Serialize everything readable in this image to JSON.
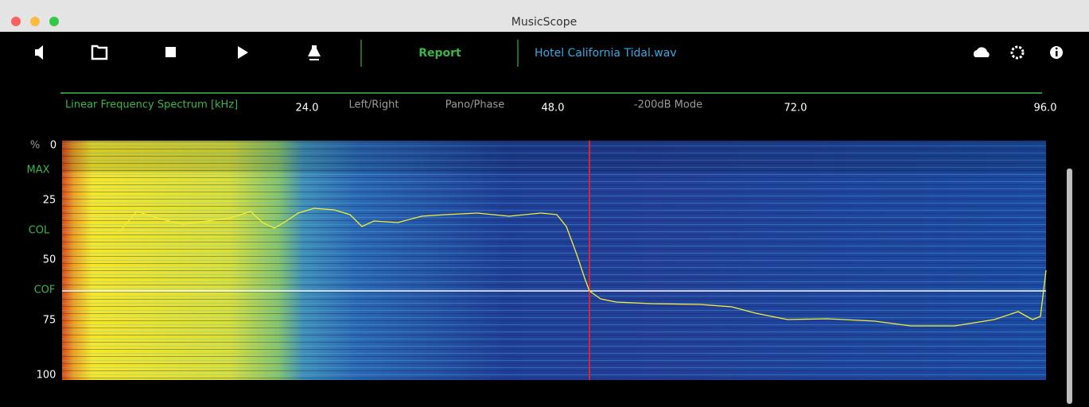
{
  "header": {
    "title": "MusicScope"
  },
  "toolbar": {
    "report": "Report",
    "file": "Hotel California Tidal.wav"
  },
  "spectrum": {
    "title": "Linear Frequency Spectrum [kHz]",
    "labels": [
      "24.0",
      "Left/Right",
      "Pano/Phase",
      "48.0",
      "-200dB Mode",
      "72.0",
      "96.0"
    ],
    "y_labels": [
      "%",
      "0",
      "MAX",
      "25",
      "COL",
      "50",
      "COF",
      "75",
      "100"
    ]
  }
}
